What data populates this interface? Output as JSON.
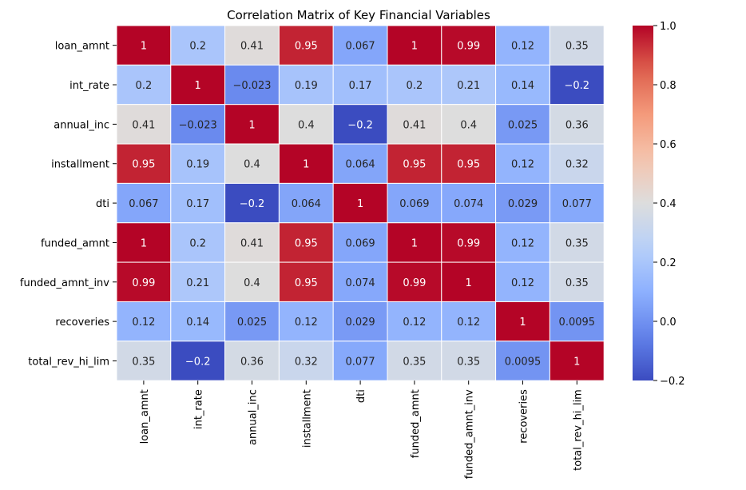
{
  "chart_data": {
    "type": "heatmap",
    "title": "Correlation Matrix of Key Financial Variables",
    "rows": [
      "loan_amnt",
      "int_rate",
      "annual_inc",
      "installment",
      "dti",
      "funded_amnt",
      "funded_amnt_inv",
      "recoveries",
      "total_rev_hi_lim"
    ],
    "columns": [
      "loan_amnt",
      "int_rate",
      "annual_inc",
      "installment",
      "dti",
      "funded_amnt",
      "funded_amnt_inv",
      "recoveries",
      "total_rev_hi_lim"
    ],
    "values": [
      [
        1,
        0.2,
        0.41,
        0.95,
        0.067,
        1,
        0.99,
        0.12,
        0.35
      ],
      [
        0.2,
        1,
        -0.023,
        0.19,
        0.17,
        0.2,
        0.21,
        0.14,
        -0.2
      ],
      [
        0.41,
        -0.023,
        1,
        0.4,
        -0.2,
        0.41,
        0.4,
        0.025,
        0.36
      ],
      [
        0.95,
        0.19,
        0.4,
        1,
        0.064,
        0.95,
        0.95,
        0.12,
        0.32
      ],
      [
        0.067,
        0.17,
        -0.2,
        0.064,
        1,
        0.069,
        0.074,
        0.029,
        0.077
      ],
      [
        1,
        0.2,
        0.41,
        0.95,
        0.069,
        1,
        0.99,
        0.12,
        0.35
      ],
      [
        0.99,
        0.21,
        0.4,
        0.95,
        0.074,
        0.99,
        1,
        0.12,
        0.35
      ],
      [
        0.12,
        0.14,
        0.025,
        0.12,
        0.029,
        0.12,
        0.12,
        1,
        0.0095
      ],
      [
        0.35,
        -0.2,
        0.36,
        0.32,
        0.077,
        0.35,
        0.35,
        0.0095,
        1
      ]
    ],
    "colormap": "coolwarm",
    "vmin": -0.2,
    "vmax": 1.0,
    "annotations": true,
    "cell_border_color": "#ffffff",
    "colorbar": {
      "ticks": [
        -0.2,
        0.0,
        0.2,
        0.4,
        0.6,
        0.8,
        1.0
      ],
      "tick_labels": [
        "−0.2",
        "0.0",
        "0.2",
        "0.4",
        "0.6",
        "0.8",
        "1.0"
      ]
    }
  }
}
